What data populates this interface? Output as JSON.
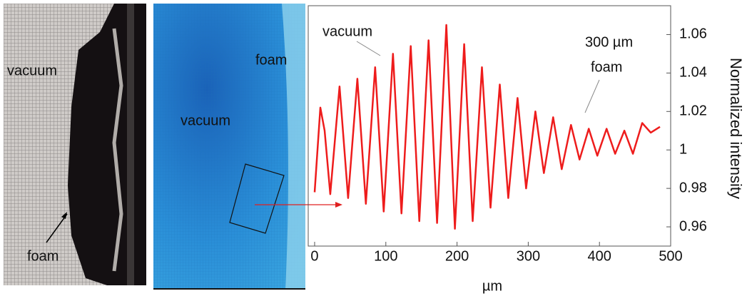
{
  "chart_data": {
    "type": "line",
    "x_label": "µm",
    "y_label": "Normalized intensity",
    "annotations": [
      "vacuum",
      "300 µm",
      "foam"
    ],
    "x": [
      0,
      8,
      14,
      22,
      35,
      47,
      60,
      72,
      85,
      97,
      110,
      122,
      135,
      147,
      160,
      172,
      185,
      197,
      210,
      222,
      235,
      247,
      260,
      272,
      285,
      297,
      310,
      322,
      335,
      347,
      360,
      372,
      385,
      397,
      410,
      422,
      435,
      447,
      460,
      472,
      485
    ],
    "series": [
      {
        "color": "#ee1c1c",
        "values": [
          0.978,
          1.022,
          1.01,
          0.977,
          1.033,
          0.975,
          1.037,
          0.972,
          1.043,
          0.968,
          1.05,
          0.967,
          1.054,
          0.963,
          1.057,
          0.962,
          1.065,
          0.959,
          1.055,
          0.963,
          1.043,
          0.97,
          1.034,
          0.975,
          1.027,
          0.98,
          1.02,
          0.988,
          1.017,
          0.99,
          1.013,
          0.995,
          1.011,
          0.997,
          1.011,
          0.998,
          1.01,
          0.998,
          1.014,
          1.009,
          1.012
        ]
      }
    ],
    "xlim": [
      -9,
      500
    ],
    "ylim": [
      0.95,
      1.075
    ],
    "xticks": [
      0,
      100,
      200,
      300,
      400,
      500
    ],
    "yticks": [
      0.96,
      0.98,
      1,
      1.02,
      1.04,
      1.06
    ]
  },
  "panels": [
    {
      "labels": [
        "vacuum",
        "foam"
      ]
    },
    {
      "labels": [
        "foam",
        "vacuum"
      ]
    }
  ]
}
